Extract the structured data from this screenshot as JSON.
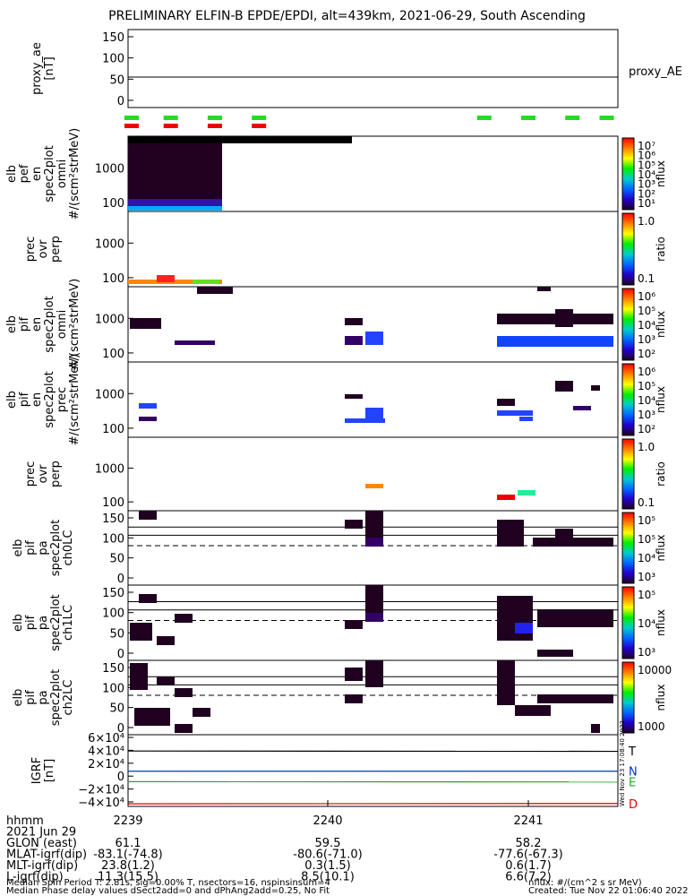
{
  "title": "PRELIMINARY ELFIN-B EPDE/EPDI, alt=439km, 2021-06-29, South Ascending",
  "chart_data": {
    "type": "heatmap",
    "panels": [
      {
        "key": "proxy_ae",
        "ylabel": [
          "proxy_ae",
          "[nT]"
        ],
        "yticks": [
          "150",
          "100",
          "50",
          "0"
        ],
        "ylim": [
          -10,
          160
        ],
        "line_value": 55,
        "legend": "proxy_AE"
      },
      {
        "key": "ele_omni",
        "ylabel": [
          "elb",
          "pef",
          "en",
          "spec2plot",
          "omni",
          "#/(scm²strMeV)"
        ],
        "yticks": [
          "1000",
          "100"
        ],
        "cb_ticks": [
          "10⁷",
          "10⁶",
          "10⁵",
          "10⁴",
          "10³",
          "10²",
          "10¹"
        ],
        "cb_label": "nflux"
      },
      {
        "key": "ele_ratio",
        "ylabel": [
          "prec",
          "ovr",
          "perp"
        ],
        "yticks": [
          "1000",
          "100"
        ],
        "cb_ticks": [
          "1.0",
          "0.1"
        ],
        "cb_label": "ratio"
      },
      {
        "key": "ion_omni",
        "ylabel": [
          "elb",
          "pif",
          "en",
          "spec2plot",
          "omni",
          "#/(scm²strMeV)"
        ],
        "yticks": [
          "1000",
          "100"
        ],
        "cb_ticks": [
          "10⁶",
          "10⁵",
          "10⁴",
          "10³",
          "10²"
        ],
        "cb_label": "nflux"
      },
      {
        "key": "ion_prec",
        "ylabel": [
          "elb",
          "pif",
          "en",
          "spec2plot",
          "prec",
          "#/(scm²strMeV)"
        ],
        "yticks": [
          "1000",
          "100"
        ],
        "cb_ticks": [
          "10⁶",
          "10⁵",
          "10⁴",
          "10³",
          "10²"
        ],
        "cb_label": "nflux"
      },
      {
        "key": "ion_ratio",
        "ylabel": [
          "prec",
          "ovr",
          "perp"
        ],
        "yticks": [
          "1000",
          "100"
        ],
        "cb_ticks": [
          "1.0",
          "0.1"
        ],
        "cb_label": "ratio"
      },
      {
        "key": "pa0",
        "ylabel": [
          "elb",
          "pif",
          "pa",
          "spec2plot",
          "ch0LC"
        ],
        "yticks": [
          "150",
          "100",
          "50",
          "0"
        ],
        "cb_ticks": [
          "10⁵",
          "10⁵",
          "10⁴",
          "10³"
        ],
        "cb_label": "nflux"
      },
      {
        "key": "pa1",
        "ylabel": [
          "elb",
          "pif",
          "pa",
          "spec2plot",
          "ch1LC"
        ],
        "yticks": [
          "150",
          "100",
          "50",
          "0"
        ],
        "cb_ticks": [
          "10⁵",
          "10⁴",
          "10³"
        ],
        "cb_label": "nflux"
      },
      {
        "key": "pa2",
        "ylabel": [
          "elb",
          "pif",
          "pa",
          "spec2plot",
          "ch2LC"
        ],
        "yticks": [
          "150",
          "100",
          "50",
          "0"
        ],
        "cb_ticks": [
          "10000",
          "1000"
        ],
        "cb_label": "nflux"
      },
      {
        "key": "igrf",
        "ylabel": [
          "IGRF",
          "[nT]"
        ],
        "yticks": [
          "6×10⁴",
          "4×10⁴",
          "2×10⁴",
          "0",
          "−2×10⁴",
          "−4×10⁴"
        ],
        "ylim": [
          -45000,
          65000
        ],
        "series": [
          {
            "name": "T",
            "color": "#000000",
            "values": [
              40000,
              39500
            ]
          },
          {
            "name": "N",
            "color": "#0033cc",
            "values": [
              9000,
              9000
            ]
          },
          {
            "name": "E",
            "color": "#22aa22",
            "values": [
              -7000,
              -7500
            ]
          },
          {
            "name": "D",
            "color": "#dd0000",
            "values": [
              -41000,
              -40500
            ]
          }
        ]
      }
    ],
    "status_bars": {
      "green": [
        0.02,
        0.1,
        0.19,
        0.28,
        0.74,
        0.83,
        0.92,
        0.99
      ],
      "red": [
        0.02,
        0.1,
        0.19,
        0.28
      ]
    },
    "x_axis": {
      "ticks": [
        "2239",
        "2240",
        "2241"
      ]
    }
  },
  "footer": {
    "rows": [
      {
        "label": "hhmm",
        "v": [
          "2239",
          "2240",
          "2241"
        ]
      },
      {
        "label": "2021 Jun 29",
        "v": [
          "",
          "",
          ""
        ]
      },
      {
        "label": "GLON (east)",
        "v": [
          "61.1",
          "59.5",
          "58.2"
        ]
      },
      {
        "label": "MLAT-igrf(dip)",
        "v": [
          "-83.1(-74.8)",
          "-80.6(-71.0)",
          "-77.6(-67.3)"
        ]
      },
      {
        "label": "MLT-igrf(dip)",
        "v": [
          "23.8(1.2)",
          "0.3(1.5)",
          "0.6(1.7)"
        ]
      },
      {
        "label": "L-igrf(dip)",
        "v": [
          "11.3(15.5)",
          "8.5(10.1)",
          "6.6(7.2)"
        ]
      }
    ],
    "note1": "Median Spin Period T: 2.81s, sig=0.00% T, nsectors=16, nspinsinsum=4",
    "note2": "Median Phase delay values dSect2add=0 and dPhAng2add=0.25, No Fit",
    "units": "nflux: #/(cm^2 s sr MeV)",
    "created": "Created: Tue Nov 22 01:06:40 2022",
    "side_stamp": "Wed Nov 23 17:08:40 2022"
  }
}
